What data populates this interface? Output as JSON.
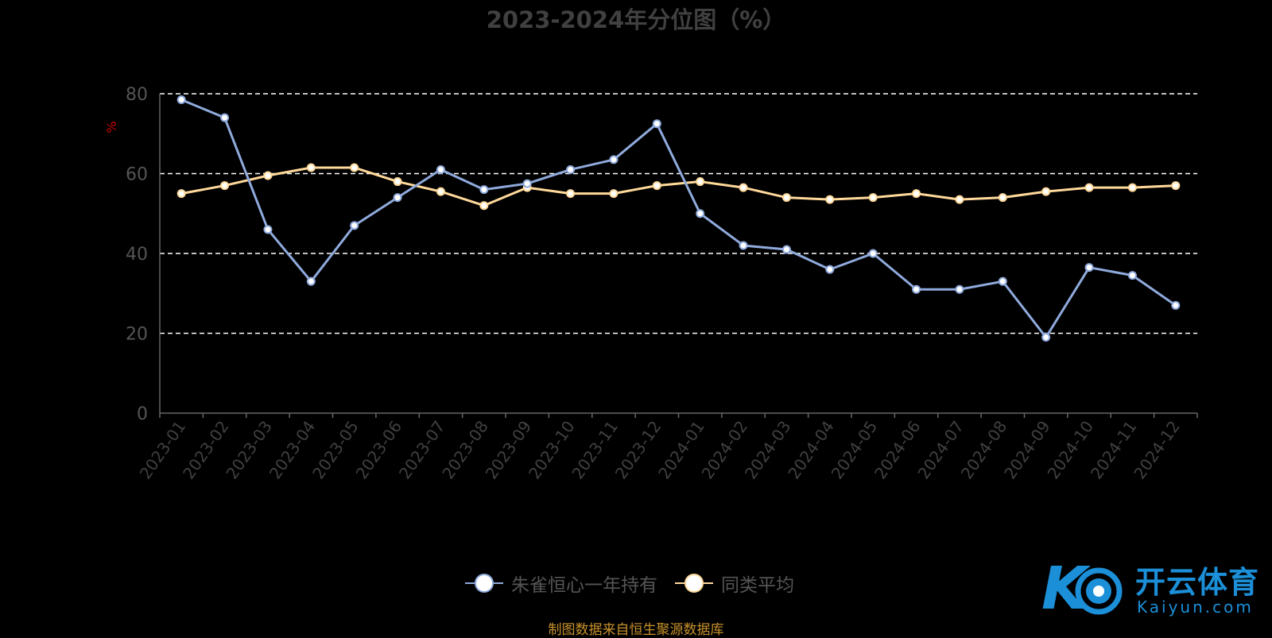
{
  "chart_data": {
    "type": "line",
    "title": "2023-2024年分位图（%）",
    "ylabel": "%",
    "ylim": [
      0,
      80
    ],
    "yticks": [
      0,
      20,
      40,
      60,
      80
    ],
    "grid": true,
    "legend_position": "bottom-center",
    "categories": [
      "2023-01",
      "2023-02",
      "2023-03",
      "2023-04",
      "2023-05",
      "2023-06",
      "2023-07",
      "2023-08",
      "2023-09",
      "2023-10",
      "2023-11",
      "2023-12",
      "2024-01",
      "2024-02",
      "2024-03",
      "2024-04",
      "2024-05",
      "2024-06",
      "2024-07",
      "2024-08",
      "2024-09",
      "2024-10",
      "2024-11",
      "2024-12"
    ],
    "series": [
      {
        "name": "朱雀恒心一年持有",
        "color": "#8faadc",
        "values": [
          78.5,
          74,
          46,
          33,
          47,
          54,
          61,
          56,
          57.5,
          61,
          63.5,
          72.5,
          50,
          42,
          41,
          36,
          40,
          31,
          31,
          33,
          19,
          36.5,
          34.5,
          27
        ]
      },
      {
        "name": "同类平均",
        "color": "#ffd99a",
        "values": [
          55,
          57,
          59.5,
          61.5,
          61.5,
          58,
          55.5,
          52,
          56.5,
          55,
          55,
          57,
          58,
          56.5,
          54,
          53.5,
          54,
          55,
          53.5,
          54,
          55.5,
          56.5,
          56.5,
          57
        ]
      }
    ]
  },
  "source_note": "制图数据来自恒生聚源数据库",
  "watermark": {
    "brand": "开云体育",
    "site": "Kaiyun.com"
  },
  "colors": {
    "background": "#000000",
    "axis": "#666666",
    "grid": "#ffffff",
    "ylabel": "#cc0000"
  }
}
